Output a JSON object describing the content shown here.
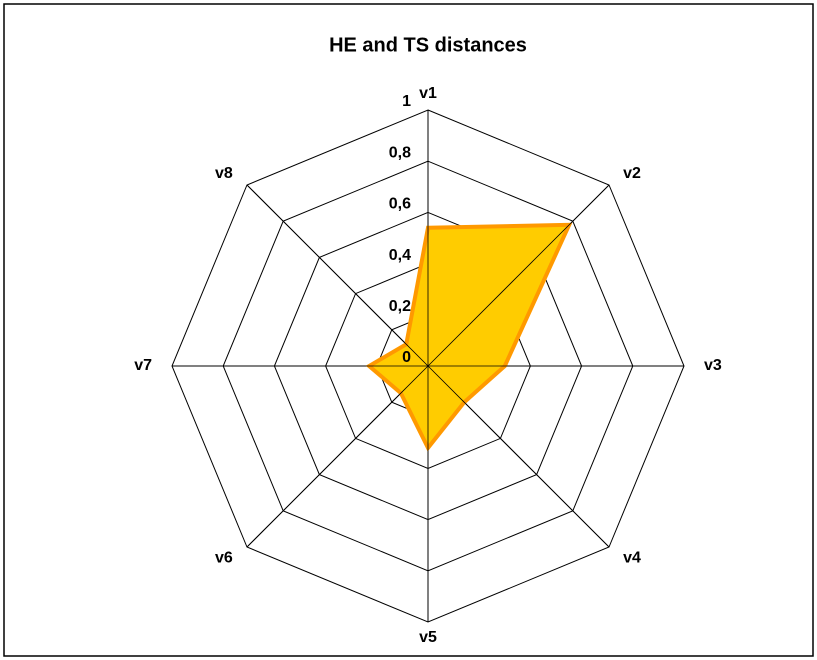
{
  "chart_data": {
    "type": "radar",
    "title": "HE and TS distances",
    "categories": [
      "v1",
      "v2",
      "v3",
      "v4",
      "v5",
      "v6",
      "v7",
      "v8"
    ],
    "series": [
      {
        "name": "HE and TS distances",
        "color": "#ffcc00",
        "edge_color": "#ff9900",
        "values": [
          0.54,
          0.78,
          0.3,
          0.2,
          0.32,
          0.15,
          0.23,
          0.12
        ]
      }
    ],
    "ylim": [
      0,
      1
    ],
    "yticks": [
      0,
      {
        "value": 0.2,
        "label": "0,2"
      },
      {
        "value": 0.4,
        "label": "0,4"
      },
      {
        "value": 0.6,
        "label": "0,6"
      },
      {
        "value": 0.8,
        "label": "0,8"
      },
      1
    ],
    "grid": true
  }
}
